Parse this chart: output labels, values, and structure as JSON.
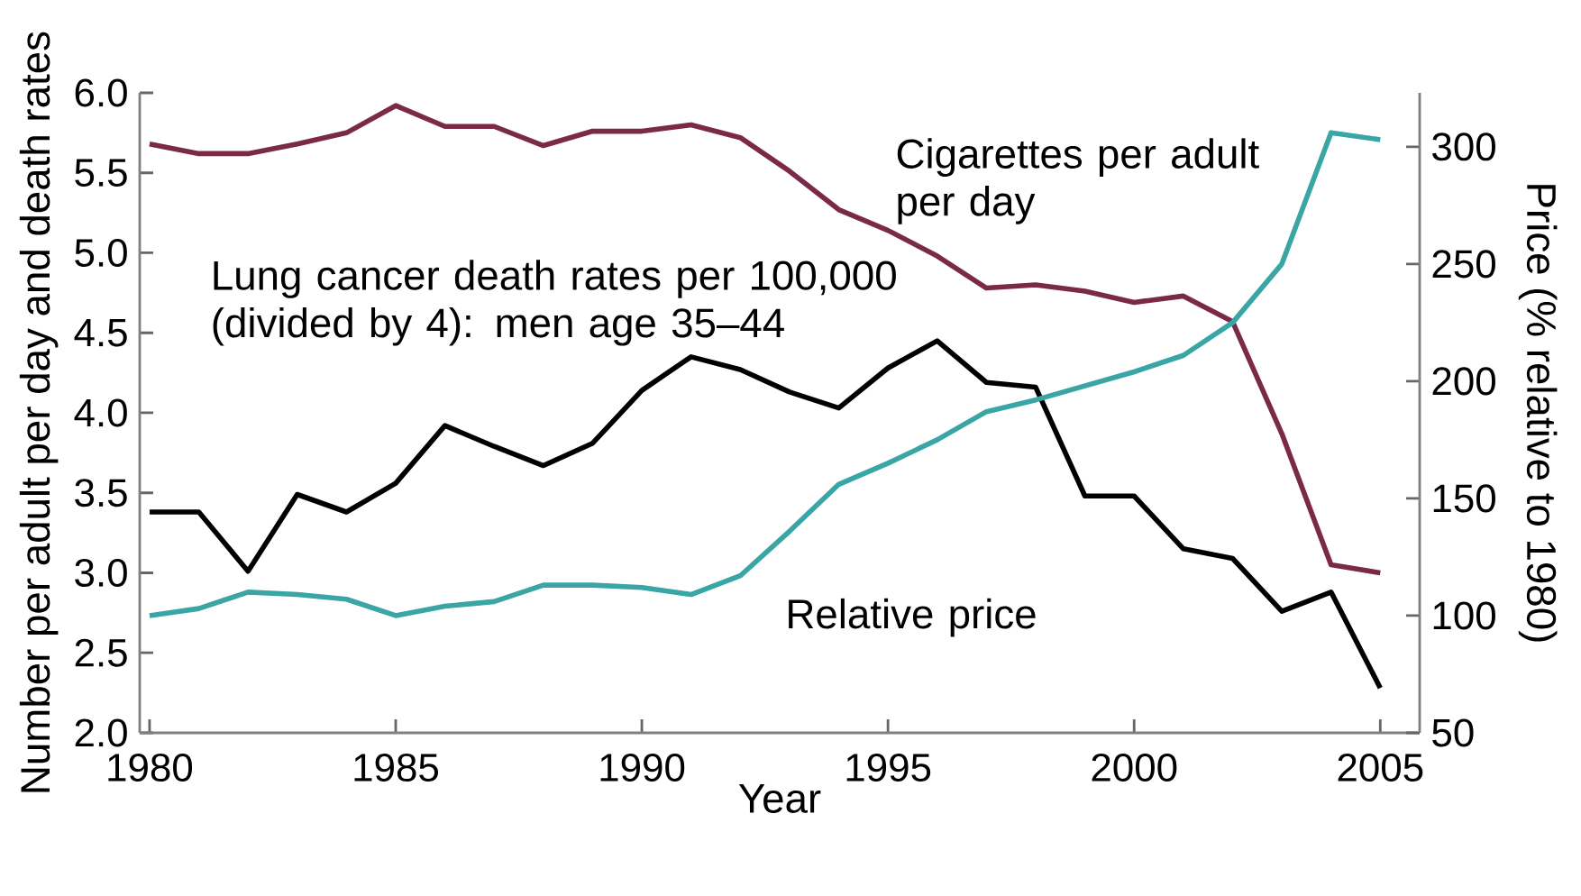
{
  "chart_data": {
    "type": "line",
    "xlabel": "Year",
    "ylabel": "Number per adult per day and death rates",
    "y2label": "Price (% relative to 1980)",
    "x": [
      1980,
      1981,
      1982,
      1983,
      1984,
      1985,
      1986,
      1987,
      1988,
      1989,
      1990,
      1991,
      1992,
      1993,
      1994,
      1995,
      1996,
      1997,
      1998,
      1999,
      2000,
      2001,
      2002,
      2003,
      2004,
      2005
    ],
    "series": [
      {
        "name": "Cigarettes per adult per day",
        "color": "#7a2a48",
        "values": [
          5.68,
          5.62,
          5.62,
          5.68,
          5.75,
          5.92,
          5.79,
          5.79,
          5.67,
          5.76,
          5.76,
          5.8,
          5.72,
          5.51,
          5.27,
          5.14,
          4.98,
          4.78,
          4.8,
          4.76,
          4.69,
          4.73,
          4.57,
          3.87,
          3.05,
          3.0
        ]
      },
      {
        "name": "Lung cancer death rates per 100,000 (divided by 4): men age 35–44",
        "color": "#000000",
        "values": [
          3.38,
          3.38,
          3.01,
          3.49,
          3.38,
          3.56,
          3.92,
          3.79,
          3.67,
          3.81,
          4.14,
          4.35,
          4.27,
          4.13,
          4.03,
          4.28,
          4.45,
          4.19,
          4.16,
          3.48,
          3.48,
          3.15,
          3.09,
          2.76,
          2.88,
          2.28
        ]
      },
      {
        "name": "Relative price",
        "color": "#3aa5a5",
        "axis": "y2",
        "values": [
          100,
          103,
          110,
          109,
          107,
          100,
          104,
          106,
          113,
          113,
          112,
          109,
          117,
          136,
          156,
          165,
          175,
          187,
          192,
          198,
          204,
          211,
          225,
          250,
          306,
          303
        ]
      }
    ],
    "xlim": [
      1979.8,
      2005.8
    ],
    "xticks": [
      1980,
      1985,
      1990,
      1995,
      2000,
      2005
    ],
    "ylim": [
      2,
      6
    ],
    "yticks": [
      {
        "value": 2,
        "label": "2.0"
      },
      {
        "value": 2.5,
        "label": "2.5"
      },
      {
        "value": 3,
        "label": "3.0"
      },
      {
        "value": 3.5,
        "label": "3.5"
      },
      {
        "value": 4,
        "label": "4.0"
      },
      {
        "value": 4.5,
        "label": "4.5"
      },
      {
        "value": 5,
        "label": "5.0"
      },
      {
        "value": 5.5,
        "label": "5.5"
      },
      {
        "value": 6,
        "label": "6.0"
      }
    ],
    "y2lim": [
      50,
      323
    ],
    "y2ticks": [
      50,
      100,
      150,
      200,
      250,
      300
    ],
    "grid": false,
    "marker": "none",
    "line_style": "solid"
  }
}
